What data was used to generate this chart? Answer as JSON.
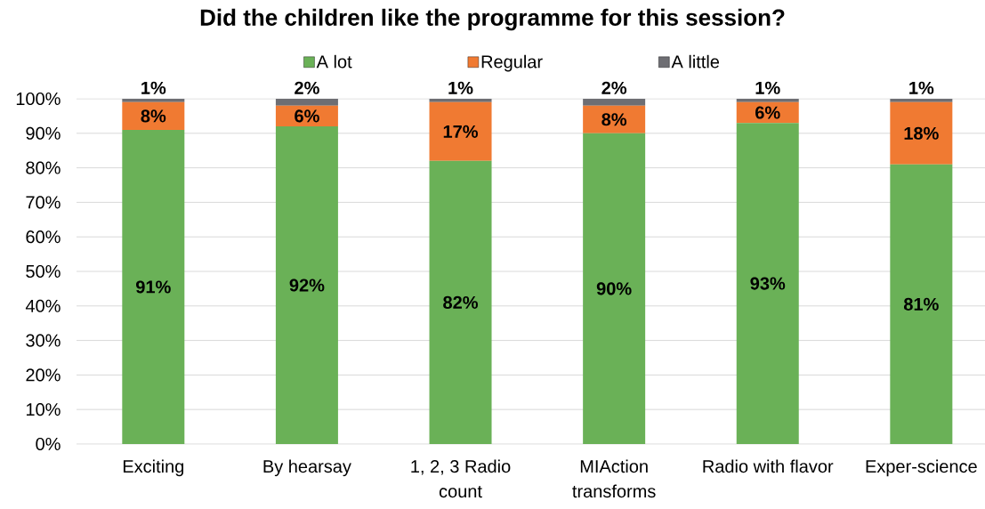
{
  "chart_data": {
    "type": "bar",
    "title": "Did the children like the programme for this session?",
    "categories": [
      "Exciting",
      "By hearsay",
      "1, 2, 3 Radio count",
      "MIAction transforms",
      "Radio with flavor",
      "Exper-science"
    ],
    "series": [
      {
        "name": "A lot",
        "color": "#6ab157",
        "values": [
          91,
          92,
          82,
          90,
          93,
          81
        ],
        "value_labels": [
          "91%",
          "92%",
          "82%",
          "90%",
          "93%",
          "81%"
        ]
      },
      {
        "name": "Regular",
        "color": "#f07a32",
        "values": [
          8,
          6,
          17,
          8,
          6,
          18
        ],
        "value_labels": [
          "8%",
          "6%",
          "17%",
          "8%",
          "6%",
          "18%"
        ]
      },
      {
        "name": "A little",
        "color": "#6e6e73",
        "values": [
          1,
          2,
          1,
          2,
          1,
          1
        ],
        "value_labels": [
          "1%",
          "2%",
          "1%",
          "2%",
          "1%",
          "1%"
        ]
      }
    ],
    "stacked": true,
    "ylim": [
      0,
      100
    ],
    "yticks": [
      {
        "value": 0,
        "label": "0%"
      },
      {
        "value": 10,
        "label": "10%"
      },
      {
        "value": 20,
        "label": "20%"
      },
      {
        "value": 30,
        "label": "30%"
      },
      {
        "value": 40,
        "label": "40%"
      },
      {
        "value": 50,
        "label": "50%"
      },
      {
        "value": 60,
        "label": "60%"
      },
      {
        "value": 70,
        "label": "70%"
      },
      {
        "value": 80,
        "label": "80%"
      },
      {
        "value": 90,
        "label": "90%"
      },
      {
        "value": 100,
        "label": "100%"
      }
    ],
    "grid": "y",
    "legend": "top"
  }
}
